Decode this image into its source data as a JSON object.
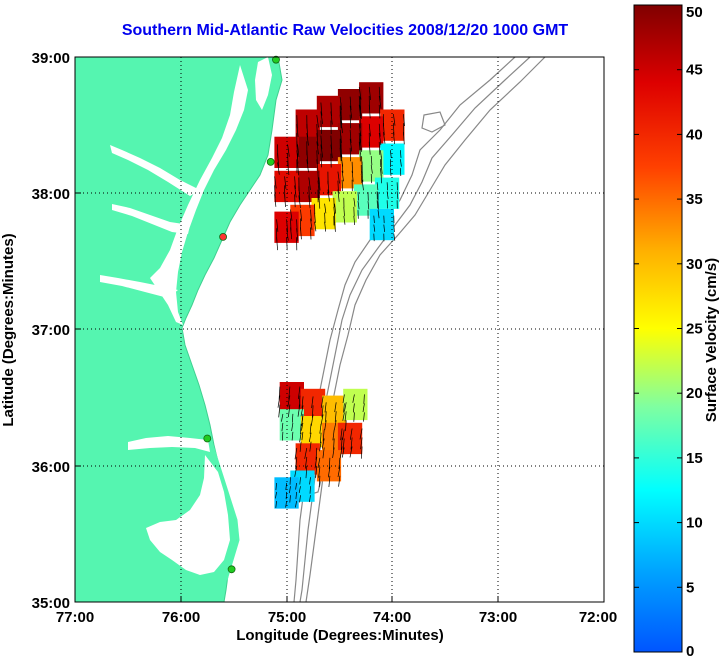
{
  "title": "Southern Mid-Atlantic Raw Velocities 2008/12/20 1000 GMT",
  "x_axis": {
    "label": "Longitude (Degrees:Minutes)",
    "ticks": [
      "77:00",
      "76:00",
      "75:00",
      "74:00",
      "73:00",
      "72:00"
    ]
  },
  "y_axis": {
    "label": "Latitude (Degrees:Minutes)",
    "ticks": [
      "39:00",
      "38:00",
      "37:00",
      "36:00",
      "35:00"
    ]
  },
  "colorbar": {
    "label": "Surface Velocity (cm/s)",
    "ticks": [
      "0",
      "5",
      "10",
      "15",
      "20",
      "25",
      "30",
      "35",
      "40",
      "45",
      "50"
    ],
    "range": [
      0,
      50
    ],
    "colormap": "jet"
  },
  "chart_data": {
    "type": "map",
    "xlim": [
      -77,
      -72
    ],
    "ylim": [
      35,
      39
    ],
    "grid": true,
    "grid_style": "dotted",
    "land_color": "#55f5b0",
    "bathymetry_color": "#888888",
    "stations": [
      {
        "lon": -75.1,
        "lat": 38.98,
        "color": "#22cc22"
      },
      {
        "lon": -75.15,
        "lat": 38.23,
        "color": "#22cc22"
      },
      {
        "lon": -75.6,
        "lat": 37.68,
        "color": "#ff3333"
      },
      {
        "lon": -75.75,
        "lat": 36.2,
        "color": "#22cc22"
      },
      {
        "lon": -75.52,
        "lat": 35.24,
        "color": "#22cc22"
      }
    ],
    "velocity_regions": [
      {
        "name": "northern",
        "cells": [
          {
            "lon": -74.2,
            "lat": 38.7,
            "v": 48
          },
          {
            "lon": -74.4,
            "lat": 38.65,
            "v": 49
          },
          {
            "lon": -74.6,
            "lat": 38.6,
            "v": 47
          },
          {
            "lon": -74.8,
            "lat": 38.5,
            "v": 46
          },
          {
            "lon": -74.0,
            "lat": 38.5,
            "v": 40
          },
          {
            "lon": -74.2,
            "lat": 38.45,
            "v": 44
          },
          {
            "lon": -74.4,
            "lat": 38.4,
            "v": 48
          },
          {
            "lon": -74.6,
            "lat": 38.35,
            "v": 50
          },
          {
            "lon": -74.8,
            "lat": 38.3,
            "v": 49
          },
          {
            "lon": -75.0,
            "lat": 38.3,
            "v": 45
          },
          {
            "lon": -74.0,
            "lat": 38.25,
            "v": 12
          },
          {
            "lon": -74.2,
            "lat": 38.2,
            "v": 20
          },
          {
            "lon": -74.4,
            "lat": 38.15,
            "v": 33
          },
          {
            "lon": -74.6,
            "lat": 38.1,
            "v": 42
          },
          {
            "lon": -74.8,
            "lat": 38.05,
            "v": 47
          },
          {
            "lon": -75.0,
            "lat": 38.05,
            "v": 43
          },
          {
            "lon": -74.05,
            "lat": 38.0,
            "v": 14
          },
          {
            "lon": -74.25,
            "lat": 37.95,
            "v": 17
          },
          {
            "lon": -74.45,
            "lat": 37.9,
            "v": 22
          },
          {
            "lon": -74.65,
            "lat": 37.85,
            "v": 27
          },
          {
            "lon": -74.85,
            "lat": 37.8,
            "v": 38
          },
          {
            "lon": -75.0,
            "lat": 37.75,
            "v": 44
          },
          {
            "lon": -74.1,
            "lat": 37.77,
            "v": 10
          }
        ]
      },
      {
        "name": "southern",
        "cells": [
          {
            "lon": -74.95,
            "lat": 36.5,
            "v": 45
          },
          {
            "lon": -74.75,
            "lat": 36.45,
            "v": 40
          },
          {
            "lon": -74.55,
            "lat": 36.4,
            "v": 30
          },
          {
            "lon": -74.35,
            "lat": 36.45,
            "v": 22
          },
          {
            "lon": -74.95,
            "lat": 36.3,
            "v": 18
          },
          {
            "lon": -74.75,
            "lat": 36.25,
            "v": 28
          },
          {
            "lon": -74.55,
            "lat": 36.2,
            "v": 34
          },
          {
            "lon": -74.4,
            "lat": 36.2,
            "v": 40
          },
          {
            "lon": -74.8,
            "lat": 36.05,
            "v": 40
          },
          {
            "lon": -74.6,
            "lat": 36.0,
            "v": 35
          },
          {
            "lon": -74.85,
            "lat": 35.85,
            "v": 10
          },
          {
            "lon": -75.0,
            "lat": 35.8,
            "v": 8
          }
        ]
      }
    ]
  }
}
